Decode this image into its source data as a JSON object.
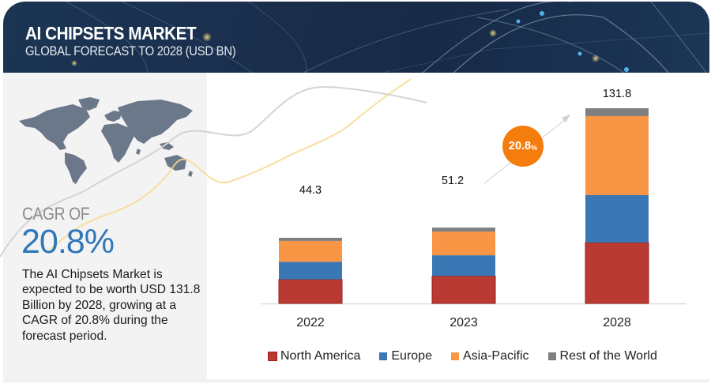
{
  "header": {
    "title": "AI CHIPSETS MARKET",
    "subtitle": "GLOBAL FORECAST TO 2028 (USD BN)"
  },
  "summary": {
    "cagr_label": "CAGR OF",
    "cagr_value": "20.8%",
    "description": "The AI Chipsets Market is expected to be worth USD 131.8 Billion by 2028, growing at a CAGR of 20.8% during the forecast period."
  },
  "growth_badge": {
    "value": "20.8",
    "unit": "%"
  },
  "colors": {
    "north_america": "#b83a32",
    "europe": "#3a78b5",
    "asia_pacific": "#f99645",
    "rest_of_world": "#7f7f7f",
    "badge": "#f57d0e",
    "cagr_accent": "#2f77b8"
  },
  "chart_data": {
    "type": "bar",
    "stacked": true,
    "title": "AI CHIPSETS MARKET - GLOBAL FORECAST TO 2028 (USD BN)",
    "xlabel": "",
    "ylabel": "",
    "categories": [
      "2022",
      "2023",
      "2028"
    ],
    "totals": [
      44.3,
      51.2,
      131.8
    ],
    "total_labels": [
      "44.3",
      "51.2",
      "131.8"
    ],
    "series": [
      {
        "name": "North America",
        "color": "#b83a32",
        "values": [
          16.2,
          18.5,
          41.1
        ]
      },
      {
        "name": "Europe",
        "color": "#3a78b5",
        "values": [
          11.9,
          14.0,
          32.0
        ]
      },
      {
        "name": "Asia-Pacific",
        "color": "#f99645",
        "values": [
          14.1,
          16.0,
          53.4
        ]
      },
      {
        "name": "Rest of the World",
        "color": "#7f7f7f",
        "values": [
          2.1,
          2.7,
          5.3
        ]
      }
    ],
    "ylim": [
      0,
      131.8
    ],
    "grid": false,
    "legend_position": "bottom",
    "annotations": [
      {
        "text": "20.8%",
        "type": "cagr-arrow",
        "from": "2023",
        "to": "2028"
      }
    ]
  }
}
